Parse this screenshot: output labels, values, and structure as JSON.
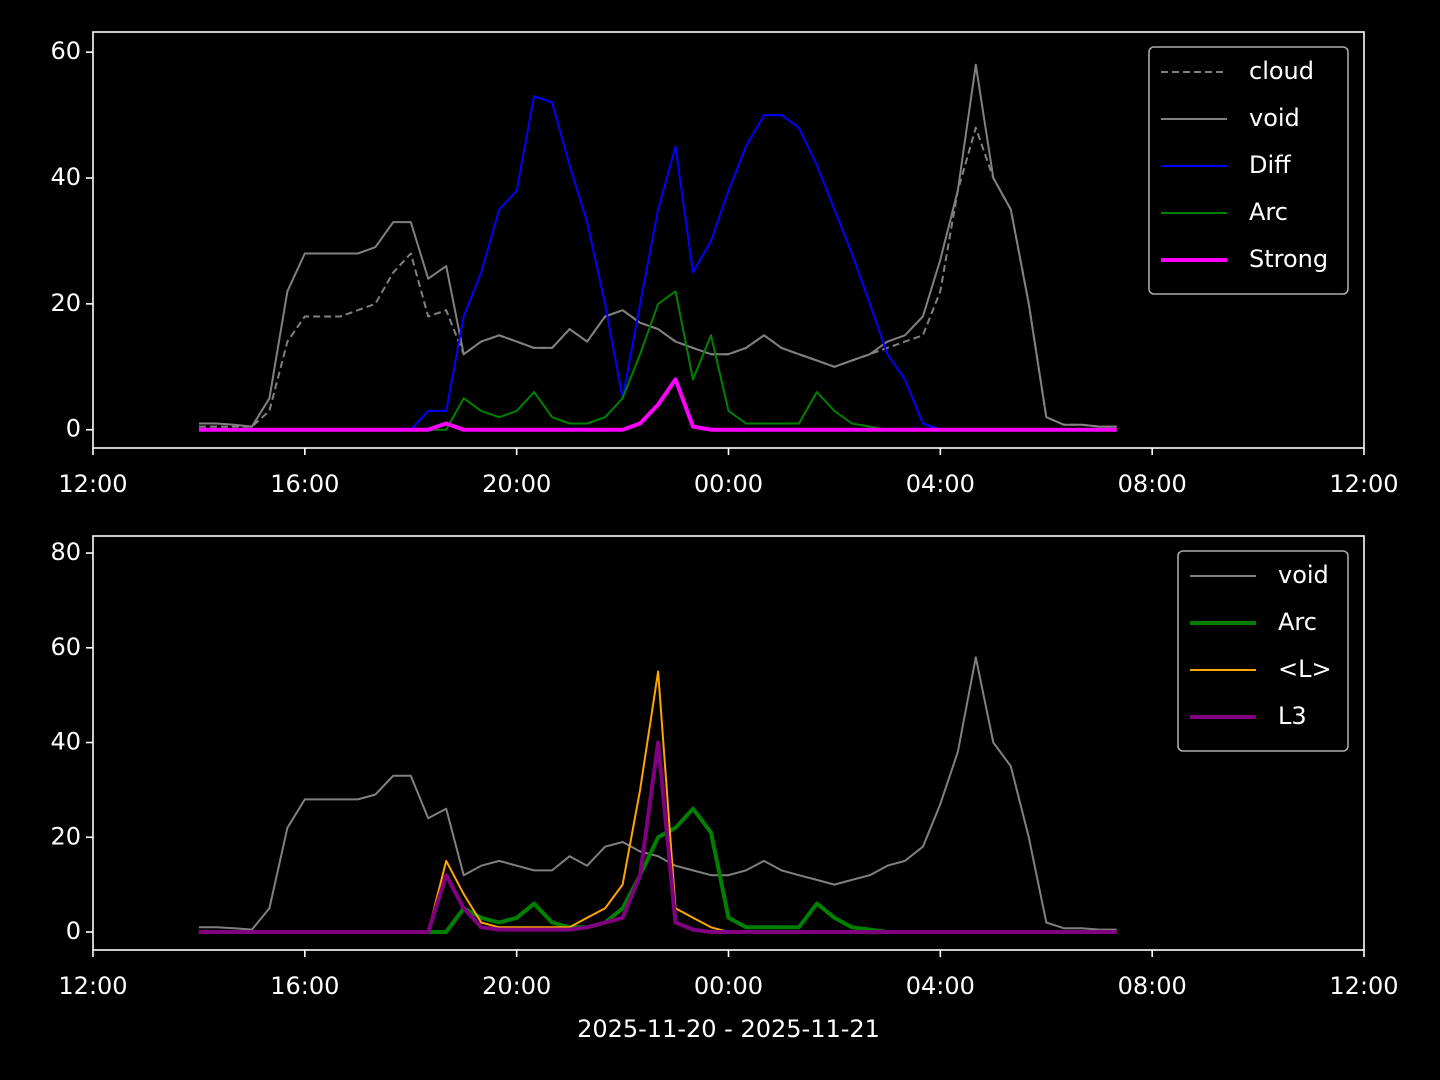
{
  "chart_data": [
    {
      "type": "line",
      "legend": "upper right",
      "xlim": [
        12,
        36
      ],
      "ylim": [
        -2.9,
        63.2
      ],
      "xticks": [
        {
          "value": 12,
          "label": "12:00"
        },
        {
          "value": 16,
          "label": "16:00"
        },
        {
          "value": 20,
          "label": "20:00"
        },
        {
          "value": 24,
          "label": "00:00"
        },
        {
          "value": 28,
          "label": "04:00"
        },
        {
          "value": 32,
          "label": "08:00"
        },
        {
          "value": 36,
          "label": "12:00"
        }
      ],
      "yticks": [
        0,
        20,
        40,
        60
      ],
      "x": [
        14,
        14.33,
        14.67,
        15,
        15.33,
        15.67,
        16,
        16.33,
        16.67,
        17,
        17.33,
        17.67,
        18,
        18.33,
        18.67,
        19,
        19.33,
        19.67,
        20,
        20.33,
        20.67,
        21,
        21.33,
        21.67,
        22,
        22.33,
        22.67,
        23,
        23.33,
        23.67,
        24,
        24.33,
        24.67,
        25,
        25.33,
        25.67,
        26,
        26.33,
        26.67,
        27,
        27.33,
        27.67,
        28,
        28.33,
        28.67,
        29,
        29.33,
        29.67,
        30,
        30.33,
        30.67,
        31,
        31.33
      ],
      "series": [
        {
          "name": "cloud",
          "color": "#808080",
          "linestyle": "dashed",
          "linewidth": 2,
          "values": [
            0.5,
            0.5,
            0.5,
            0.5,
            3,
            14,
            18,
            18,
            18,
            19,
            20,
            25,
            28,
            18,
            19,
            12,
            14,
            15,
            14,
            13,
            13,
            16,
            14,
            18,
            19,
            17,
            16,
            14,
            13,
            12,
            12,
            13,
            15,
            13,
            12,
            11,
            10,
            11,
            12,
            13,
            14,
            15,
            22,
            38,
            48,
            40,
            35,
            20,
            2,
            0.8,
            0.8,
            0.5,
            0.5
          ]
        },
        {
          "name": "void",
          "color": "#808080",
          "linewidth": 2,
          "values": [
            1,
            1,
            0.8,
            0.5,
            5,
            22,
            28,
            28,
            28,
            28,
            29,
            33,
            33,
            24,
            26,
            12,
            14,
            15,
            14,
            13,
            13,
            16,
            14,
            18,
            19,
            17,
            16,
            14,
            13,
            12,
            12,
            13,
            15,
            13,
            12,
            11,
            10,
            11,
            12,
            14,
            15,
            18,
            27,
            38,
            58,
            40,
            35,
            20,
            2,
            0.8,
            0.8,
            0.5,
            0.5
          ]
        },
        {
          "name": "Diff",
          "color": "#0000ff",
          "linewidth": 2,
          "values": [
            null,
            null,
            null,
            null,
            null,
            null,
            null,
            null,
            null,
            null,
            null,
            null,
            0,
            3,
            3,
            18,
            25,
            35,
            38,
            53,
            52,
            42,
            33,
            20,
            5,
            20,
            35,
            45,
            25,
            30,
            38,
            45,
            50,
            50,
            48,
            42,
            35,
            28,
            20,
            12,
            8,
            1,
            0,
            null,
            null,
            null,
            null,
            null,
            null,
            null,
            null,
            null,
            null
          ]
        },
        {
          "name": "Arc",
          "color": "#008000",
          "linewidth": 2,
          "values": [
            0,
            0,
            0,
            0,
            0,
            0,
            0,
            0,
            0,
            0,
            0,
            0,
            0,
            0,
            0,
            5,
            3,
            2,
            3,
            6,
            2,
            1,
            1,
            2,
            5,
            12,
            20,
            22,
            8,
            15,
            3,
            1,
            1,
            1,
            1,
            6,
            3,
            1,
            0.5,
            0,
            0,
            0,
            0,
            0,
            0,
            0,
            0,
            0,
            0,
            0,
            0,
            0,
            0
          ]
        },
        {
          "name": "Strong",
          "color": "#ff00ff",
          "linewidth": 4,
          "values": [
            0,
            0,
            0,
            0,
            0,
            0,
            0,
            0,
            0,
            0,
            0,
            0,
            0,
            0,
            1,
            0,
            0,
            0,
            0,
            0,
            0,
            0,
            0,
            0,
            0,
            1,
            4,
            8,
            0.5,
            0,
            0,
            0,
            0,
            0,
            0,
            0,
            0,
            0,
            0,
            0,
            0,
            0,
            0,
            0,
            0,
            0,
            0,
            0,
            0,
            0,
            0,
            0,
            0
          ]
        }
      ]
    },
    {
      "type": "line",
      "legend": "upper right",
      "xlim": [
        12,
        36
      ],
      "ylim": [
        -3.8,
        83.6
      ],
      "xticks": [
        {
          "value": 12,
          "label": "12:00"
        },
        {
          "value": 16,
          "label": "16:00"
        },
        {
          "value": 20,
          "label": "20:00"
        },
        {
          "value": 24,
          "label": "00:00"
        },
        {
          "value": 28,
          "label": "04:00"
        },
        {
          "value": 32,
          "label": "08:00"
        },
        {
          "value": 36,
          "label": "12:00"
        }
      ],
      "yticks": [
        0,
        20,
        40,
        60,
        80
      ],
      "xlabel": "2025-11-20 - 2025-11-21",
      "x": [
        14,
        14.33,
        14.67,
        15,
        15.33,
        15.67,
        16,
        16.33,
        16.67,
        17,
        17.33,
        17.67,
        18,
        18.33,
        18.67,
        19,
        19.33,
        19.67,
        20,
        20.33,
        20.67,
        21,
        21.33,
        21.67,
        22,
        22.33,
        22.67,
        23,
        23.33,
        23.67,
        24,
        24.33,
        24.67,
        25,
        25.33,
        25.67,
        26,
        26.33,
        26.67,
        27,
        27.33,
        27.67,
        28,
        28.33,
        28.67,
        29,
        29.33,
        29.67,
        30,
        30.33,
        30.67,
        31,
        31.33
      ],
      "series": [
        {
          "name": "void",
          "color": "#808080",
          "linewidth": 2,
          "values": [
            1,
            1,
            0.8,
            0.5,
            5,
            22,
            28,
            28,
            28,
            28,
            29,
            33,
            33,
            24,
            26,
            12,
            14,
            15,
            14,
            13,
            13,
            16,
            14,
            18,
            19,
            17,
            16,
            14,
            13,
            12,
            12,
            13,
            15,
            13,
            12,
            11,
            10,
            11,
            12,
            14,
            15,
            18,
            27,
            38,
            58,
            40,
            35,
            20,
            2,
            0.8,
            0.8,
            0.5,
            0.5
          ]
        },
        {
          "name": "Arc",
          "color": "#008000",
          "linewidth": 4,
          "values": [
            0,
            0,
            0,
            0,
            0,
            0,
            0,
            0,
            0,
            0,
            0,
            0,
            0,
            0,
            0,
            5,
            3,
            2,
            3,
            6,
            2,
            1,
            1,
            2,
            5,
            12,
            20,
            22,
            26,
            21,
            3,
            1,
            1,
            1,
            1,
            6,
            3,
            1,
            0.5,
            0,
            0,
            0,
            0,
            0,
            0,
            0,
            0,
            0,
            0,
            0,
            0,
            0,
            0
          ]
        },
        {
          "name": "<L>",
          "color": "#ffa500",
          "linewidth": 2,
          "values": [
            0,
            0,
            0,
            0,
            0,
            0,
            0,
            0,
            0,
            0,
            0,
            0,
            0,
            0,
            15,
            8,
            2,
            1,
            1,
            1,
            1,
            1,
            3,
            5,
            10,
            30,
            55,
            5,
            3,
            1,
            0,
            0,
            0,
            0,
            0,
            0,
            0,
            0,
            0,
            0,
            0,
            0,
            0,
            0,
            0,
            0,
            0,
            0,
            0,
            0,
            0,
            0,
            0
          ]
        },
        {
          "name": "L3",
          "color": "#800080",
          "linewidth": 4,
          "values": [
            0,
            0,
            0,
            0,
            0,
            0,
            0,
            0,
            0,
            0,
            0,
            0,
            0,
            0,
            12,
            5,
            1,
            0.5,
            0.5,
            0.5,
            0.5,
            0.5,
            1,
            2,
            3,
            12,
            40,
            2,
            0.5,
            0,
            0,
            0,
            0,
            0,
            0,
            0,
            0,
            0,
            0,
            0,
            0,
            0,
            0,
            0,
            0,
            0,
            0,
            0,
            0,
            0,
            0,
            0,
            0
          ]
        }
      ]
    }
  ]
}
